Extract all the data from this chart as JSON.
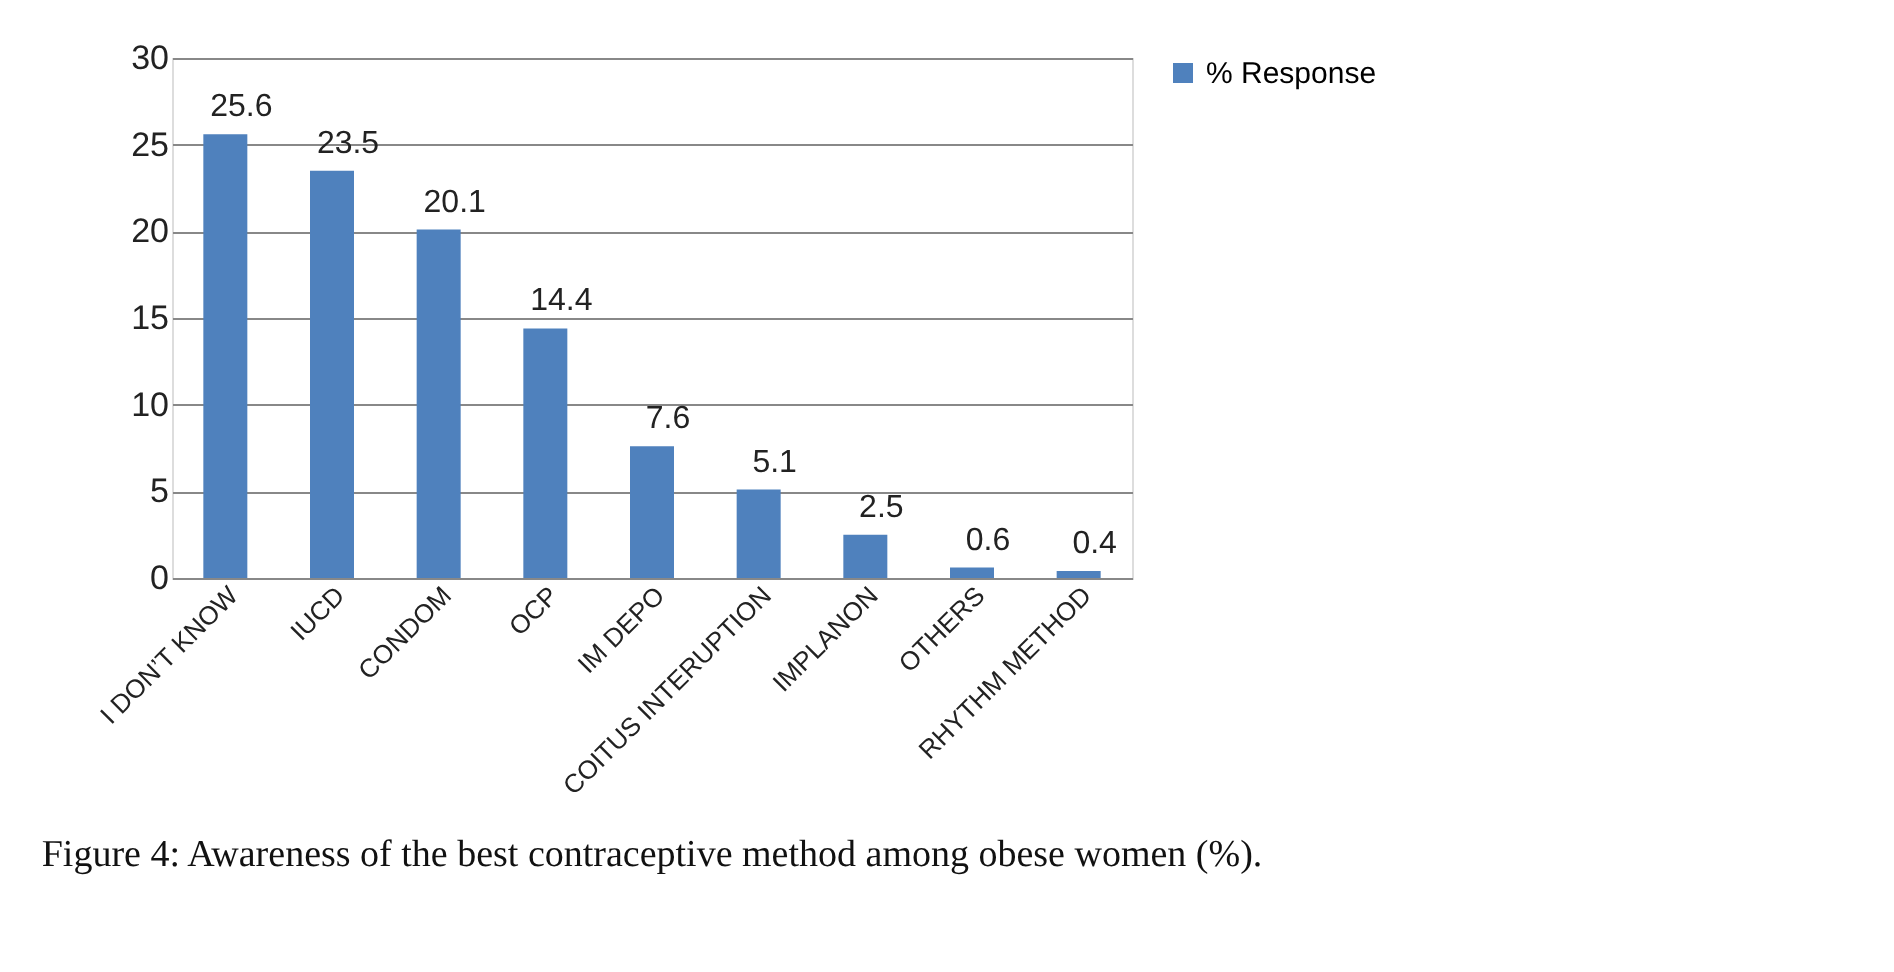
{
  "chart_data": {
    "type": "bar",
    "categories": [
      "I DON’T KNOW",
      "IUCD",
      "CONDOM",
      "OCP",
      "IM DEPO",
      "COITUS INTERUPTION",
      "IMPLANON",
      "OTHERS",
      "RHYTHM METHOD"
    ],
    "series": [
      {
        "name": "% Response",
        "color": "#4f81bd",
        "values": [
          25.6,
          23.5,
          20.1,
          14.4,
          7.6,
          5.1,
          2.5,
          0.6,
          0.4
        ]
      }
    ],
    "ylim": [
      0,
      30
    ],
    "yticks": [
      0,
      5,
      10,
      15,
      20,
      25,
      30
    ],
    "grid": "y",
    "legend": "right",
    "data_labels": true,
    "annotations": [
      "Figure 4: Awareness of the best contraceptive method among obese women (%)."
    ]
  }
}
